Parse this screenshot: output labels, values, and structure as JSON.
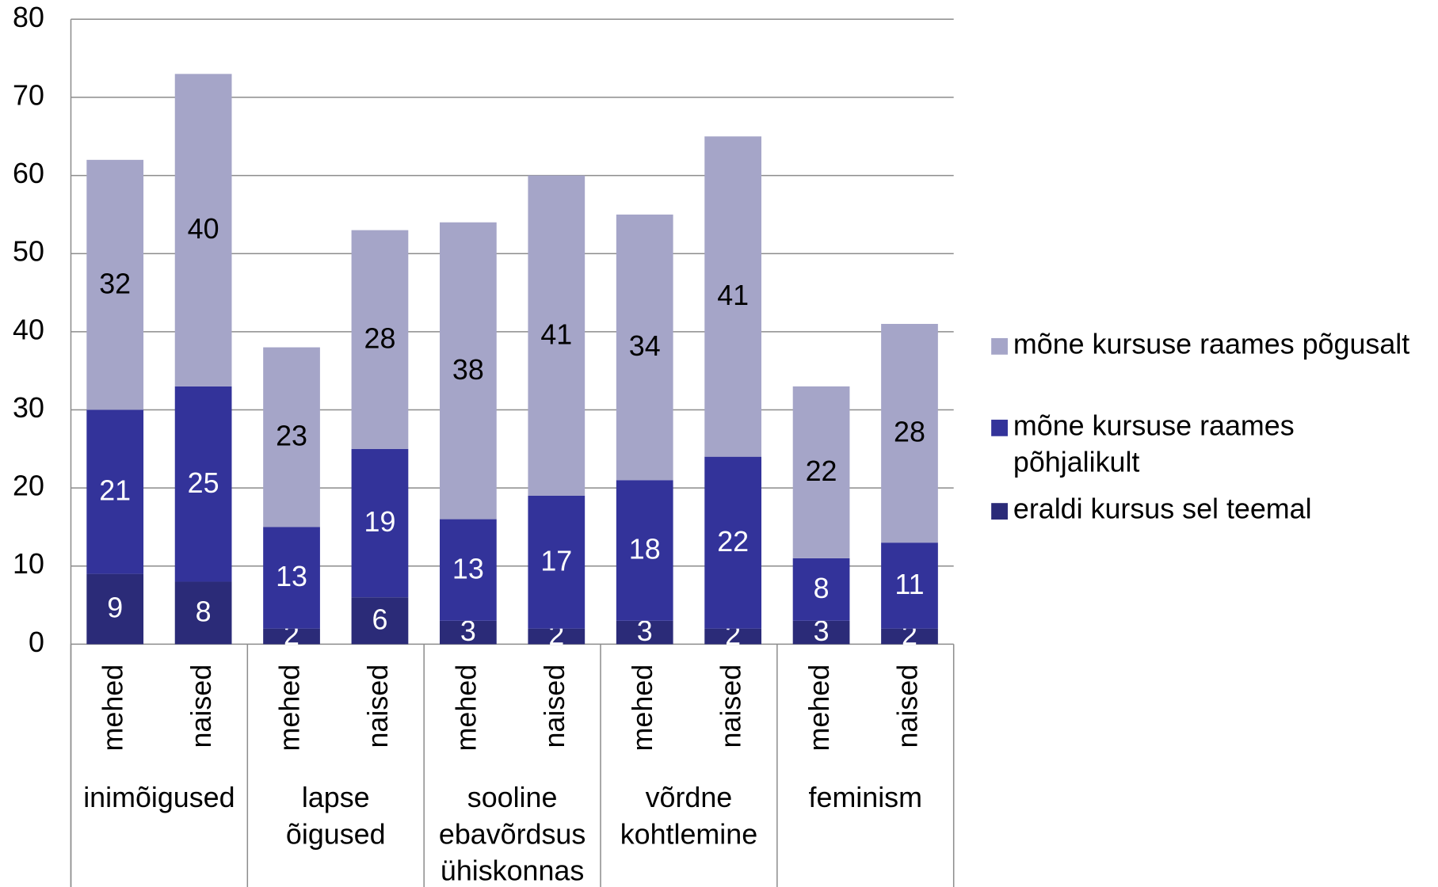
{
  "chart_data": {
    "type": "stacked_bar",
    "categories": [
      "mehed",
      "naised",
      "mehed",
      "naised",
      "mehed",
      "naised",
      "mehed",
      "naised",
      "mehed",
      "naised"
    ],
    "groups": [
      "inimõigused",
      "lapse\nõigused",
      "sooline\nebavõrdsus\nühiskonnas",
      "võrdne\nkohtlemine",
      "feminism"
    ],
    "series": [
      {
        "name": "eraldi kursus sel teemal",
        "color": "#2b2b78",
        "values": [
          9,
          8,
          2,
          6,
          3,
          2,
          3,
          2,
          3,
          2
        ]
      },
      {
        "name": "mõne kursuse raames\npõhjalikult",
        "color": "#33339a",
        "values": [
          21,
          25,
          13,
          19,
          13,
          17,
          18,
          22,
          8,
          11
        ]
      },
      {
        "name": "mõne kursuse raames põgusalt",
        "color": "#a5a5c8",
        "values": [
          32,
          40,
          23,
          28,
          38,
          41,
          34,
          41,
          22,
          28
        ]
      }
    ],
    "ylim": [
      0,
      80
    ],
    "yticks": [
      0,
      10,
      20,
      30,
      40,
      50,
      60,
      70,
      80
    ],
    "grid": true,
    "legend": "right"
  }
}
